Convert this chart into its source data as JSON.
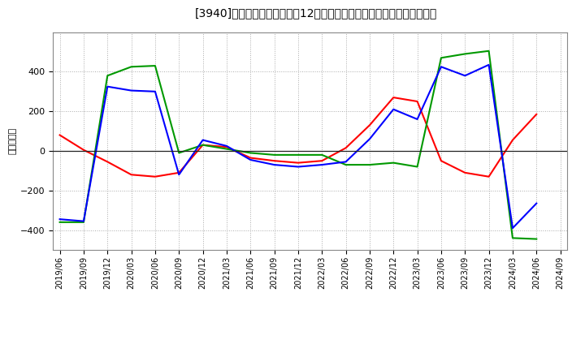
{
  "title": "[3940]　キャッシュフローの12か月移動合計の対前年同期増減額の推移",
  "ylabel": "（百万円）",
  "background_color": "#ffffff",
  "plot_bg_color": "#ffffff",
  "grid_color": "#aaaaaa",
  "x_labels": [
    "2019/06",
    "2019/09",
    "2019/12",
    "2020/03",
    "2020/06",
    "2020/09",
    "2020/12",
    "2021/03",
    "2021/06",
    "2021/09",
    "2021/12",
    "2022/03",
    "2022/06",
    "2022/09",
    "2022/12",
    "2023/03",
    "2023/06",
    "2023/09",
    "2023/12",
    "2024/03",
    "2024/06",
    "2024/09"
  ],
  "operating_cf": [
    80,
    5,
    -55,
    -120,
    -130,
    -110,
    30,
    20,
    -35,
    -50,
    -60,
    -50,
    15,
    130,
    270,
    250,
    -50,
    -110,
    -130,
    55,
    185,
    null
  ],
  "investing_cf": [
    -360,
    -360,
    380,
    425,
    430,
    -10,
    30,
    10,
    -10,
    -20,
    -20,
    -20,
    -70,
    -70,
    -60,
    -80,
    470,
    490,
    505,
    -440,
    -445,
    null
  ],
  "free_cf": [
    -345,
    -355,
    325,
    305,
    300,
    -120,
    55,
    25,
    -45,
    -70,
    -80,
    -70,
    -55,
    60,
    210,
    160,
    425,
    380,
    435,
    -390,
    -265,
    null
  ],
  "line_colors": {
    "operating": "#ff0000",
    "investing": "#009900",
    "free": "#0000ff"
  },
  "ylim": [
    -500,
    600
  ],
  "yticks": [
    -400,
    -200,
    0,
    200,
    400
  ]
}
